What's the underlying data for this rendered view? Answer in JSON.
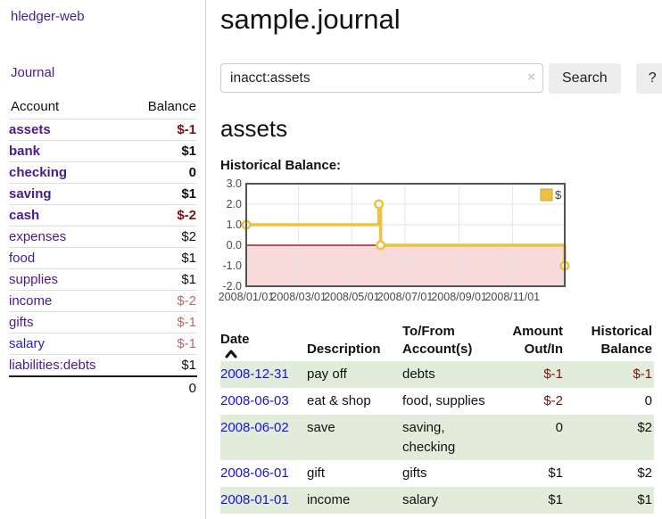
{
  "app": {
    "brand": "hledger-web",
    "nav": {
      "journal": "Journal"
    }
  },
  "sidebar": {
    "accounts_table": {
      "headers": {
        "account": "Account",
        "balance": "Balance"
      },
      "rows": [
        {
          "name": "assets",
          "balance": "$-1",
          "depth": 0,
          "bold": true,
          "negative": "strong",
          "link": "purple"
        },
        {
          "name": "bank",
          "balance": "$1",
          "depth": 1,
          "bold": true,
          "negative": null,
          "link": "purple"
        },
        {
          "name": "checking",
          "balance": "0",
          "depth": 2,
          "bold": true,
          "negative": null,
          "link": "purple"
        },
        {
          "name": "saving",
          "balance": "$1",
          "depth": 2,
          "bold": true,
          "negative": null,
          "link": "purple"
        },
        {
          "name": "cash",
          "balance": "$-2",
          "depth": 1,
          "bold": true,
          "negative": "strong",
          "link": "purple"
        },
        {
          "name": "expenses",
          "balance": "$2",
          "depth": 0,
          "bold": false,
          "negative": null,
          "link": "purple"
        },
        {
          "name": "food",
          "balance": "$1",
          "depth": 1,
          "bold": false,
          "negative": null,
          "link": "purple"
        },
        {
          "name": "supplies",
          "balance": "$1",
          "depth": 1,
          "bold": false,
          "negative": null,
          "link": "purple"
        },
        {
          "name": "income",
          "balance": "$-2",
          "depth": 0,
          "bold": false,
          "negative": "soft",
          "link": "purple"
        },
        {
          "name": "gifts",
          "balance": "$-1",
          "depth": 1,
          "bold": false,
          "negative": "soft",
          "link": "purple"
        },
        {
          "name": "salary",
          "balance": "$-1",
          "depth": 1,
          "bold": false,
          "negative": "soft",
          "link": "blue"
        },
        {
          "name": "liabilities:debts",
          "balance": "$1",
          "depth": 0,
          "bold": false,
          "negative": null,
          "link": "purple"
        }
      ],
      "total": "0"
    }
  },
  "main": {
    "title": "sample.journal",
    "search": {
      "value": "inacct:assets",
      "clear_icon": "×",
      "search_button": "Search",
      "help_button": "?"
    },
    "account_heading": "assets",
    "chart_heading": "Historical Balance:"
  },
  "chart_data": {
    "type": "line",
    "step": true,
    "title": "Historical Balance",
    "series": [
      {
        "name": "$",
        "points": [
          {
            "date": "2008-01-01",
            "day": 0,
            "value": 1
          },
          {
            "date": "2008-06-01",
            "day": 152,
            "value": 2
          },
          {
            "date": "2008-06-03",
            "day": 154,
            "value": 0
          },
          {
            "date": "2008-12-31",
            "day": 365,
            "value": -1
          }
        ]
      }
    ],
    "x_ticks": [
      {
        "day": 0,
        "label": "2008/01/01"
      },
      {
        "day": 60,
        "label": "2008/03/01"
      },
      {
        "day": 121,
        "label": "2008/05/01"
      },
      {
        "day": 182,
        "label": "2008/07/01"
      },
      {
        "day": 244,
        "label": "2008/09/01"
      },
      {
        "day": 305,
        "label": "2008/11/01"
      }
    ],
    "x_max_day": 365,
    "y_ticks": [
      {
        "value": 3,
        "label": "3.0"
      },
      {
        "value": 2,
        "label": "2.0"
      },
      {
        "value": 1,
        "label": "1.0"
      },
      {
        "value": 0,
        "label": "0.0"
      },
      {
        "value": -1,
        "label": "-1.0"
      },
      {
        "value": -2,
        "label": "-2.0"
      }
    ],
    "ylim": [
      -2,
      3
    ],
    "grid": true,
    "legend": {
      "label": "$",
      "position": "top-right"
    },
    "colors": {
      "line": "#EDC240",
      "negative_fill": "#f9dadb",
      "zero_line": "#8b0000",
      "border": "#545454",
      "grid": "#e4e4e4",
      "tick_text": "#4a4a4a"
    }
  },
  "register": {
    "headers": [
      {
        "label": "Date",
        "sorted": "asc"
      },
      {
        "label": "Description"
      },
      {
        "label": "To/From Account(s)"
      },
      {
        "label": "Amount Out/In"
      },
      {
        "label": "Historical Balance"
      }
    ],
    "rows": [
      {
        "date": "2008-12-31",
        "description": "pay off",
        "accounts": "debts",
        "amount": "$-1",
        "amount_negative": true,
        "balance": "$-1",
        "balance_negative": true,
        "shaded": true
      },
      {
        "date": "2008-06-03",
        "description": "eat & shop",
        "accounts": "food, supplies",
        "amount": "$-2",
        "amount_negative": true,
        "balance": "0",
        "balance_negative": false,
        "shaded": false
      },
      {
        "date": "2008-06-02",
        "description": "save",
        "accounts": "saving, checking",
        "amount": "0",
        "amount_negative": false,
        "balance": "$2",
        "balance_negative": false,
        "shaded": true
      },
      {
        "date": "2008-06-01",
        "description": "gift",
        "accounts": "gifts",
        "amount": "$1",
        "amount_negative": false,
        "balance": "$2",
        "balance_negative": false,
        "shaded": false
      },
      {
        "date": "2008-01-01",
        "description": "income",
        "accounts": "salary",
        "amount": "$1",
        "amount_negative": false,
        "balance": "$1",
        "balance_negative": false,
        "shaded": true
      }
    ]
  },
  "colors": {
    "link_purple": "#4a1a8f",
    "link_blue": "#2222cc",
    "date_link_blue": "#1a12d9",
    "negative_strong": "#7a1010",
    "negative_soft": "#b36b6b",
    "row_shaded_green": "#e1edda",
    "button_background": "#ededed",
    "input_border": "#cccccc",
    "sidebar_divider": "#d9d9d9"
  }
}
